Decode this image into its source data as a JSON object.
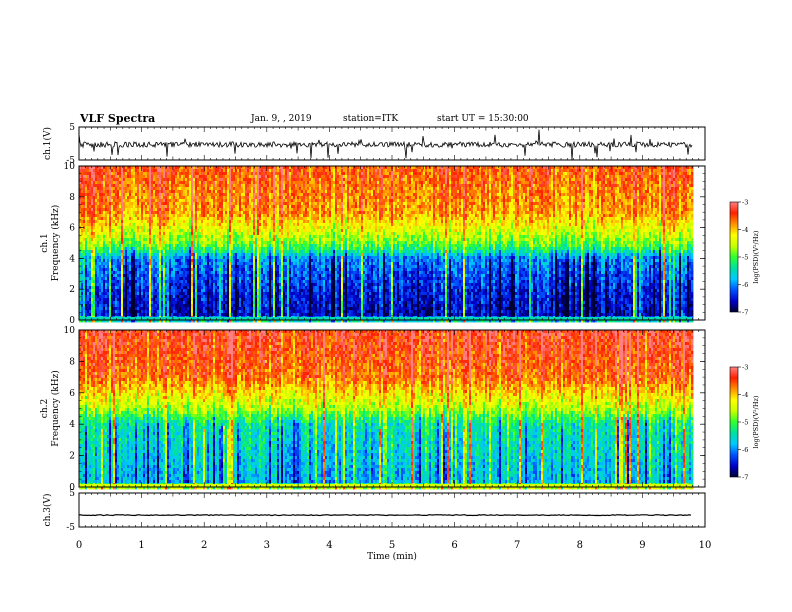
{
  "header": {
    "title": "VLF Spectra",
    "date": "Jan. 9, , 2019",
    "station": "station=ITK",
    "start": "start UT =   15:30:00"
  },
  "colors": {
    "ramp": [
      "#000030",
      "#0000c8",
      "#0050ff",
      "#00c8ff",
      "#00e0a0",
      "#30ff30",
      "#c8ff00",
      "#ffff00",
      "#ff9000",
      "#ff2000",
      "#ff8080"
    ],
    "waveform": "#000000"
  },
  "chart_data": [
    {
      "type": "line",
      "panel": "ch1-waveform",
      "ylabel": "ch.1(V)",
      "yticks": [
        "5",
        "-5"
      ],
      "ylim": [
        -5,
        5
      ],
      "xlim": [
        0,
        10
      ],
      "series": [
        {
          "values_description_level": -0.3
        }
      ]
    },
    {
      "type": "heatmap",
      "panel": "ch1-spectrogram",
      "ylabel": "ch.1 Frequency (kHz)",
      "ylabel_top": "ch.1",
      "ylabel_bottom": "Frequency (kHz)",
      "yticks": [
        "0",
        "2",
        "4",
        "6",
        "8",
        "10"
      ],
      "ylim": [
        0,
        10
      ],
      "xlim": [
        0,
        9.8
      ],
      "colorbar": {
        "label": "log(PSD)(V²/Hz)",
        "ticks": [
          "-3",
          "-4",
          "-5",
          "-6",
          "-7"
        ],
        "range": [
          -7,
          -3
        ]
      },
      "profile_khz": [
        0,
        0.3,
        2,
        4,
        4.5,
        5,
        6,
        7,
        10
      ],
      "profile_level": [
        -5.5,
        -6.6,
        -6.4,
        -6.0,
        -5.3,
        -4.8,
        -4.3,
        -3.8,
        -3.5
      ]
    },
    {
      "type": "heatmap",
      "panel": "ch2-spectrogram",
      "ylabel": "ch.2 Frequency (kHz)",
      "ylabel_top": "ch.2",
      "ylabel_bottom": "Frequency (kHz)",
      "yticks": [
        "0",
        "2",
        "4",
        "6",
        "8",
        "10"
      ],
      "ylim": [
        0,
        10
      ],
      "xlim": [
        0,
        9.8
      ],
      "colorbar": {
        "label": "log(PSD)(V²/Hz)",
        "ticks": [
          "-3",
          "-4",
          "-5",
          "-6",
          "-7"
        ],
        "range": [
          -7,
          -3
        ]
      },
      "profile_khz": [
        0,
        0.3,
        2,
        4,
        4.5,
        5,
        6,
        7,
        10
      ],
      "profile_level": [
        -4.5,
        -5.8,
        -5.6,
        -5.4,
        -5.0,
        -4.6,
        -4.1,
        -3.6,
        -3.3
      ]
    },
    {
      "type": "line",
      "panel": "ch3-waveform",
      "ylabel": "ch.3(V)",
      "yticks": [
        "5",
        "-5"
      ],
      "ylim": [
        -5,
        5
      ],
      "xlim": [
        0,
        10
      ],
      "series": [
        {
          "level": -1.5
        }
      ]
    }
  ],
  "xaxis": {
    "label": "Time (min)",
    "ticks": [
      "0",
      "1",
      "2",
      "3",
      "4",
      "5",
      "6",
      "7",
      "8",
      "9",
      "10"
    ],
    "range": [
      0,
      10
    ]
  }
}
